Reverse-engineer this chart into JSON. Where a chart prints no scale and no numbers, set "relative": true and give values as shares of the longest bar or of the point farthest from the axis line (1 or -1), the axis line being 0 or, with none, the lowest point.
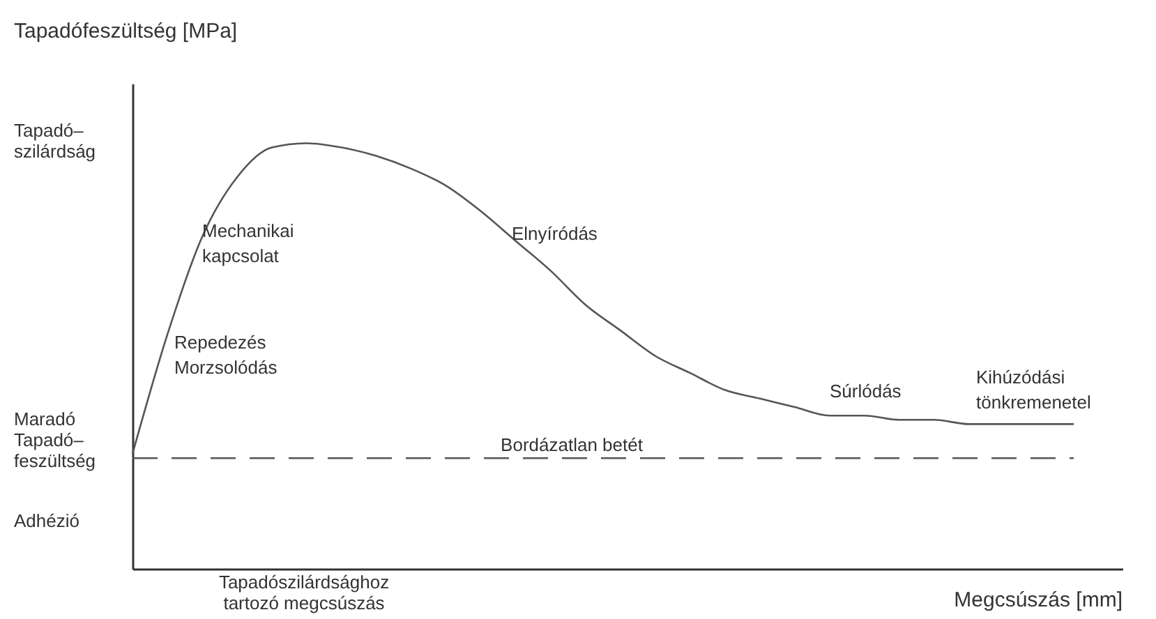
{
  "chart_data": {
    "type": "line",
    "relative": true,
    "legend": false,
    "marker": "none",
    "ylabel": "Tapadófeszültség [MPa]",
    "xlabel": "Megcsúszás [mm]",
    "categories": [
      null,
      null,
      null,
      null,
      null,
      null,
      null,
      null,
      null,
      null,
      null,
      null,
      null,
      null,
      null,
      null,
      null,
      null,
      null,
      null,
      null,
      null,
      null,
      null,
      null,
      null,
      null,
      null
    ],
    "series": [
      {
        "color": "#555555",
        "line_style": "solid",
        "values": [
          0.27,
          0.55,
          0.78,
          0.92,
          0.99,
          1.0,
          0.99,
          0.97,
          0.94,
          0.9,
          0.84,
          0.77,
          0.7,
          0.62,
          0.56,
          0.5,
          0.46,
          0.42,
          0.4,
          0.38,
          0.36,
          0.36,
          0.35,
          0.35,
          0.34,
          0.34,
          0.34,
          0.34
        ]
      },
      {
        "name": "Bordázatlan betét",
        "color": "#555555",
        "line_style": "dashed",
        "values": [
          0.26,
          0.26,
          0.26,
          0.26,
          0.26,
          0.26,
          0.26,
          0.26,
          0.26,
          0.26,
          0.26,
          0.26,
          0.26,
          0.26,
          0.26,
          0.26,
          0.26,
          0.26,
          0.26,
          0.26,
          0.26,
          0.26,
          0.26,
          0.26,
          0.26,
          0.26,
          0.26,
          0.26
        ]
      }
    ],
    "annotations": [
      "Tapadó–\nszilárdság",
      "Maradó\nTapadó–\nfeszültség",
      "Adhézió",
      "Tapadószilárdsághoz\ntartozó megcsúszás",
      "Mechanikai\nkapcsolat",
      "Repedezés\nMorzsolódás",
      "Elnyíródás",
      "Súrlódás",
      "Kihúzódási\ntönkremenetel"
    ]
  }
}
